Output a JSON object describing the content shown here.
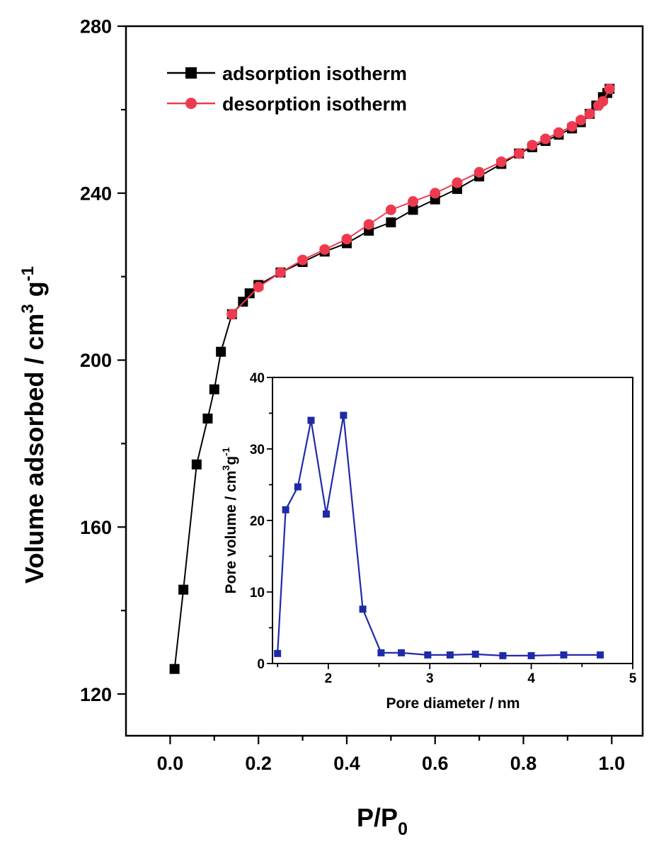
{
  "chart_data": [
    {
      "type": "line",
      "title": "",
      "xlabel": "P/P",
      "xlabel_sub": "0",
      "ylabel": "Volume adsorbed / cm",
      "ylabel_sup": "3",
      "ylabel_tail": " g",
      "ylabel_sup2": "-1",
      "xlim": [
        -0.1,
        1.07
      ],
      "ylim": [
        110,
        280
      ],
      "xticks": [
        0.0,
        0.2,
        0.4,
        0.6,
        0.8,
        1.0
      ],
      "xtick_labels": [
        "0.0",
        "0.2",
        "0.4",
        "0.6",
        "0.8",
        "1.0"
      ],
      "yticks": [
        120,
        160,
        200,
        240,
        280
      ],
      "ytick_labels": [
        "120",
        "160",
        "200",
        "240",
        "280"
      ],
      "grid": false,
      "legend": "top-left",
      "series": [
        {
          "name": "adsorption isotherm",
          "color": "#000000",
          "marker": "square",
          "x": [
            0.01,
            0.03,
            0.06,
            0.085,
            0.1,
            0.115,
            0.14,
            0.165,
            0.18,
            0.2,
            0.25,
            0.3,
            0.35,
            0.4,
            0.45,
            0.5,
            0.55,
            0.6,
            0.65,
            0.7,
            0.75,
            0.79,
            0.82,
            0.85,
            0.88,
            0.91,
            0.93,
            0.95,
            0.965,
            0.98,
            0.99,
            0.995
          ],
          "y": [
            126,
            145,
            175,
            186,
            193,
            202,
            211,
            214,
            216,
            218,
            221,
            223.5,
            226,
            228,
            231,
            233,
            236,
            238.5,
            241,
            244,
            247,
            249.5,
            251,
            252.5,
            254,
            255.5,
            257,
            259,
            261,
            263,
            264,
            265
          ]
        },
        {
          "name": "desorption isotherm",
          "color": "#ee3a4f",
          "marker": "circle",
          "x": [
            0.14,
            0.2,
            0.25,
            0.3,
            0.35,
            0.4,
            0.45,
            0.5,
            0.55,
            0.6,
            0.65,
            0.7,
            0.75,
            0.79,
            0.82,
            0.85,
            0.88,
            0.91,
            0.93,
            0.95,
            0.97,
            0.98,
            0.995
          ],
          "y": [
            211,
            217.5,
            221,
            224,
            226.5,
            229,
            232.5,
            236,
            238,
            240,
            242.5,
            245,
            247.5,
            249.5,
            251.5,
            253,
            254.5,
            256,
            257.5,
            259,
            261,
            262,
            265
          ]
        }
      ]
    },
    {
      "type": "line",
      "title": "",
      "xlabel": "Pore diameter / nm",
      "ylabel": "Pore volume / cm",
      "ylabel_sup": "3",
      "ylabel_tail": "g",
      "ylabel_sup2": "-1",
      "xlim": [
        1.45,
        5.0
      ],
      "ylim": [
        0,
        40
      ],
      "xticks": [
        2,
        3,
        4,
        5
      ],
      "xtick_labels": [
        "2",
        "3",
        "4",
        "5"
      ],
      "yticks": [
        0,
        10,
        20,
        30,
        40
      ],
      "ytick_labels": [
        "0",
        "10",
        "20",
        "30",
        "40"
      ],
      "grid": false,
      "series": [
        {
          "color": "#1f2aa8",
          "marker": "square",
          "x": [
            1.5,
            1.58,
            1.7,
            1.83,
            1.98,
            2.15,
            2.34,
            2.52,
            2.72,
            2.98,
            3.2,
            3.45,
            3.72,
            4.0,
            4.32,
            4.68
          ],
          "y": [
            1.4,
            21.5,
            24.7,
            34.0,
            20.9,
            34.7,
            7.6,
            1.5,
            1.5,
            1.2,
            1.2,
            1.3,
            1.1,
            1.1,
            1.2,
            1.2
          ]
        }
      ]
    }
  ]
}
